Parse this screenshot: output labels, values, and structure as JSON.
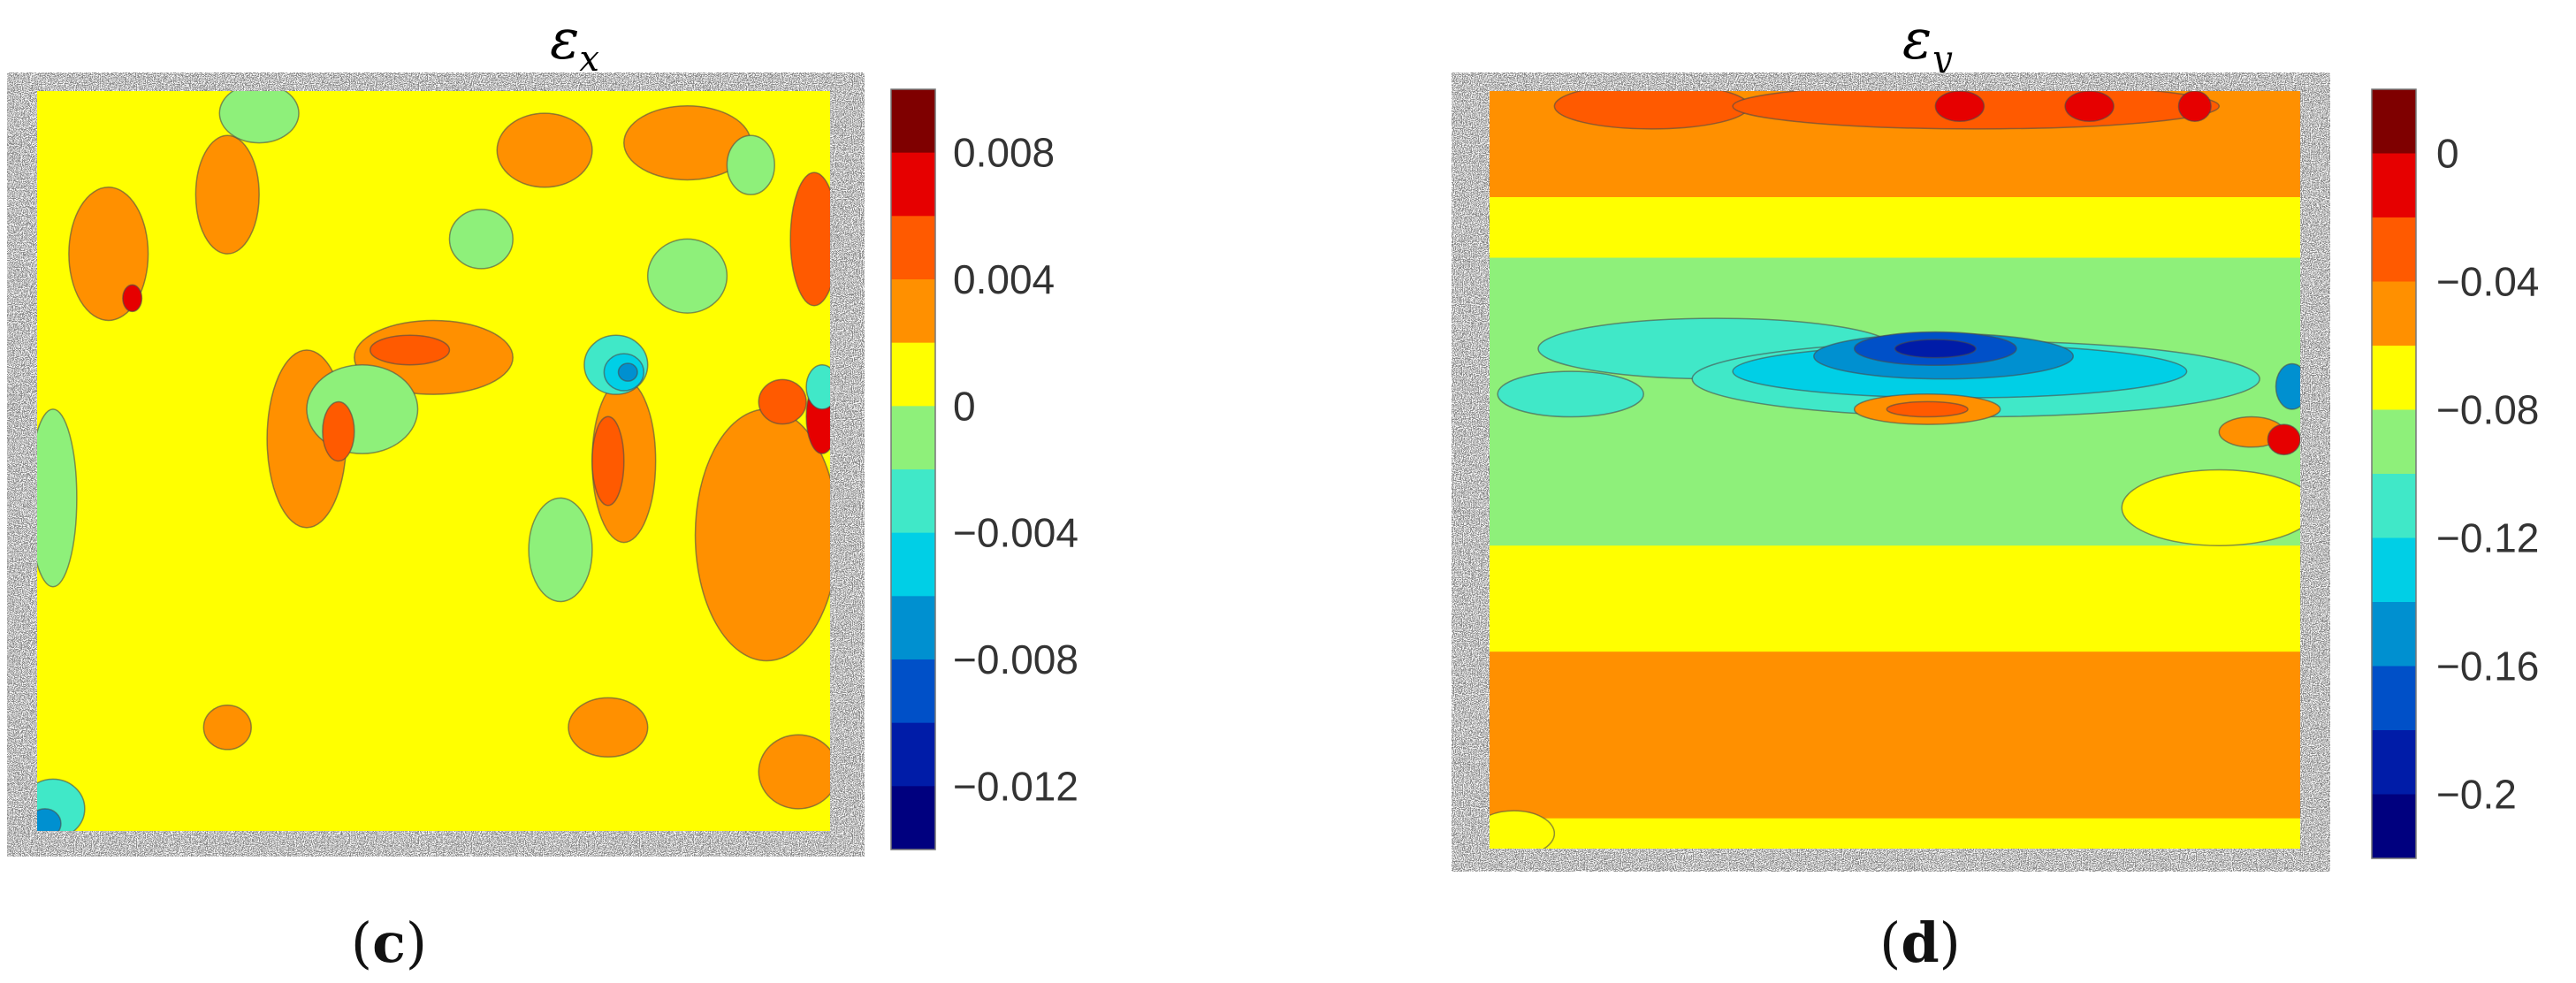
{
  "chart_data": [
    {
      "type": "heatmap",
      "title_base": "ε",
      "title_sub": "x",
      "caption_letter": "c",
      "colorbar_range": [
        -0.014,
        0.01
      ],
      "colorbar_step": 0.002,
      "colorbar_ticks": [
        {
          "value": 0.008,
          "label": "0.008"
        },
        {
          "value": 0.004,
          "label": "0.004"
        },
        {
          "value": 0,
          "label": "0"
        },
        {
          "value": -0.004,
          "label": "−0.004"
        },
        {
          "value": -0.008,
          "label": "−0.008"
        },
        {
          "value": -0.012,
          "label": "−0.012"
        }
      ],
      "field_level": 0.001,
      "regions": [
        {
          "value": 0.003,
          "cx": 0.09,
          "cy": 0.22,
          "rx": 0.05,
          "ry": 0.09
        },
        {
          "value": 0.003,
          "cx": 0.24,
          "cy": 0.14,
          "rx": 0.04,
          "ry": 0.08
        },
        {
          "value": 0.003,
          "cx": 0.34,
          "cy": 0.47,
          "rx": 0.05,
          "ry": 0.12
        },
        {
          "value": 0.003,
          "cx": 0.5,
          "cy": 0.36,
          "rx": 0.1,
          "ry": 0.05
        },
        {
          "value": 0.003,
          "cx": 0.74,
          "cy": 0.5,
          "rx": 0.04,
          "ry": 0.11
        },
        {
          "value": 0.003,
          "cx": 0.92,
          "cy": 0.6,
          "rx": 0.09,
          "ry": 0.17
        },
        {
          "value": 0.003,
          "cx": 0.82,
          "cy": 0.07,
          "rx": 0.08,
          "ry": 0.05
        },
        {
          "value": 0.003,
          "cx": 0.64,
          "cy": 0.08,
          "rx": 0.06,
          "ry": 0.05
        },
        {
          "value": 0.003,
          "cx": 0.24,
          "cy": 0.86,
          "rx": 0.03,
          "ry": 0.03
        },
        {
          "value": 0.003,
          "cx": 0.72,
          "cy": 0.86,
          "rx": 0.05,
          "ry": 0.04
        },
        {
          "value": 0.003,
          "cx": 0.96,
          "cy": 0.92,
          "rx": 0.05,
          "ry": 0.05
        },
        {
          "value": -0.001,
          "cx": 0.28,
          "cy": 0.03,
          "rx": 0.05,
          "ry": 0.04
        },
        {
          "value": -0.001,
          "cx": 0.41,
          "cy": 0.43,
          "rx": 0.07,
          "ry": 0.06
        },
        {
          "value": -0.001,
          "cx": 0.56,
          "cy": 0.2,
          "rx": 0.04,
          "ry": 0.04
        },
        {
          "value": -0.001,
          "cx": 0.82,
          "cy": 0.25,
          "rx": 0.05,
          "ry": 0.05
        },
        {
          "value": -0.001,
          "cx": 0.02,
          "cy": 0.55,
          "rx": 0.03,
          "ry": 0.12
        },
        {
          "value": -0.001,
          "cx": 0.66,
          "cy": 0.62,
          "rx": 0.04,
          "ry": 0.07
        },
        {
          "value": -0.001,
          "cx": 0.9,
          "cy": 0.1,
          "rx": 0.03,
          "ry": 0.04
        },
        {
          "value": 0.005,
          "cx": 0.47,
          "cy": 0.35,
          "rx": 0.05,
          "ry": 0.02
        },
        {
          "value": 0.005,
          "cx": 0.38,
          "cy": 0.46,
          "rx": 0.02,
          "ry": 0.04
        },
        {
          "value": 0.005,
          "cx": 0.72,
          "cy": 0.5,
          "rx": 0.02,
          "ry": 0.06
        },
        {
          "value": 0.005,
          "cx": 0.98,
          "cy": 0.2,
          "rx": 0.03,
          "ry": 0.09
        },
        {
          "value": 0.005,
          "cx": 0.94,
          "cy": 0.42,
          "rx": 0.03,
          "ry": 0.03
        },
        {
          "value": 0.007,
          "cx": 0.99,
          "cy": 0.44,
          "rx": 0.02,
          "ry": 0.05
        },
        {
          "value": 0.007,
          "cx": 0.12,
          "cy": 0.28,
          "rx": 0.012,
          "ry": 0.018
        },
        {
          "value": -0.003,
          "cx": 0.73,
          "cy": 0.37,
          "rx": 0.04,
          "ry": 0.04
        },
        {
          "value": -0.005,
          "cx": 0.74,
          "cy": 0.38,
          "rx": 0.025,
          "ry": 0.025
        },
        {
          "value": -0.007,
          "cx": 0.745,
          "cy": 0.38,
          "rx": 0.012,
          "ry": 0.012
        },
        {
          "value": -0.003,
          "cx": 0.99,
          "cy": 0.4,
          "rx": 0.02,
          "ry": 0.03
        },
        {
          "value": -0.003,
          "cx": 0.02,
          "cy": 0.97,
          "rx": 0.04,
          "ry": 0.04
        },
        {
          "value": -0.007,
          "cx": 0.01,
          "cy": 0.99,
          "rx": 0.02,
          "ry": 0.02
        }
      ]
    },
    {
      "type": "heatmap",
      "title_base": "ε",
      "title_sub": "y",
      "caption_letter": "d",
      "colorbar_range": [
        -0.22,
        0.02
      ],
      "colorbar_step": 0.02,
      "colorbar_ticks": [
        {
          "value": 0,
          "label": "0"
        },
        {
          "value": -0.04,
          "label": "−0.04"
        },
        {
          "value": -0.08,
          "label": "−0.08"
        },
        {
          "value": -0.12,
          "label": "−0.12"
        },
        {
          "value": -0.16,
          "label": "−0.16"
        },
        {
          "value": -0.2,
          "label": "−0.2"
        }
      ],
      "bands": [
        {
          "value": -0.05,
          "y0": 0.0,
          "y1": 0.14
        },
        {
          "value": -0.07,
          "y0": 0.14,
          "y1": 0.22
        },
        {
          "value": -0.09,
          "y0": 0.22,
          "y1": 0.6
        },
        {
          "value": -0.07,
          "y0": 0.6,
          "y1": 0.74
        },
        {
          "value": -0.05,
          "y0": 0.74,
          "y1": 0.96
        },
        {
          "value": -0.07,
          "y0": 0.96,
          "y1": 1.0
        }
      ],
      "regions": [
        {
          "value": -0.03,
          "cx": 0.2,
          "cy": 0.02,
          "rx": 0.12,
          "ry": 0.03
        },
        {
          "value": -0.03,
          "cx": 0.6,
          "cy": 0.02,
          "rx": 0.3,
          "ry": 0.03
        },
        {
          "value": -0.01,
          "cx": 0.58,
          "cy": 0.02,
          "rx": 0.03,
          "ry": 0.02
        },
        {
          "value": -0.01,
          "cx": 0.74,
          "cy": 0.02,
          "rx": 0.03,
          "ry": 0.02
        },
        {
          "value": -0.01,
          "cx": 0.87,
          "cy": 0.02,
          "rx": 0.02,
          "ry": 0.02
        },
        {
          "value": -0.07,
          "cx": 0.9,
          "cy": 0.55,
          "rx": 0.12,
          "ry": 0.05
        },
        {
          "value": -0.11,
          "cx": 0.28,
          "cy": 0.34,
          "rx": 0.22,
          "ry": 0.04
        },
        {
          "value": -0.11,
          "cx": 0.6,
          "cy": 0.38,
          "rx": 0.35,
          "ry": 0.05
        },
        {
          "value": -0.11,
          "cx": 0.1,
          "cy": 0.4,
          "rx": 0.09,
          "ry": 0.03
        },
        {
          "value": -0.13,
          "cx": 0.58,
          "cy": 0.37,
          "rx": 0.28,
          "ry": 0.035
        },
        {
          "value": -0.15,
          "cx": 0.56,
          "cy": 0.35,
          "rx": 0.16,
          "ry": 0.03
        },
        {
          "value": -0.17,
          "cx": 0.55,
          "cy": 0.34,
          "rx": 0.1,
          "ry": 0.022
        },
        {
          "value": -0.19,
          "cx": 0.55,
          "cy": 0.34,
          "rx": 0.05,
          "ry": 0.012
        },
        {
          "value": -0.05,
          "cx": 0.54,
          "cy": 0.42,
          "rx": 0.09,
          "ry": 0.02
        },
        {
          "value": -0.03,
          "cx": 0.54,
          "cy": 0.42,
          "rx": 0.05,
          "ry": 0.01
        },
        {
          "value": -0.05,
          "cx": 0.94,
          "cy": 0.45,
          "rx": 0.04,
          "ry": 0.02
        },
        {
          "value": -0.01,
          "cx": 0.98,
          "cy": 0.46,
          "rx": 0.02,
          "ry": 0.02
        },
        {
          "value": -0.15,
          "cx": 0.99,
          "cy": 0.39,
          "rx": 0.02,
          "ry": 0.03
        },
        {
          "value": -0.07,
          "cx": 0.03,
          "cy": 0.98,
          "rx": 0.05,
          "ry": 0.03
        }
      ]
    }
  ]
}
